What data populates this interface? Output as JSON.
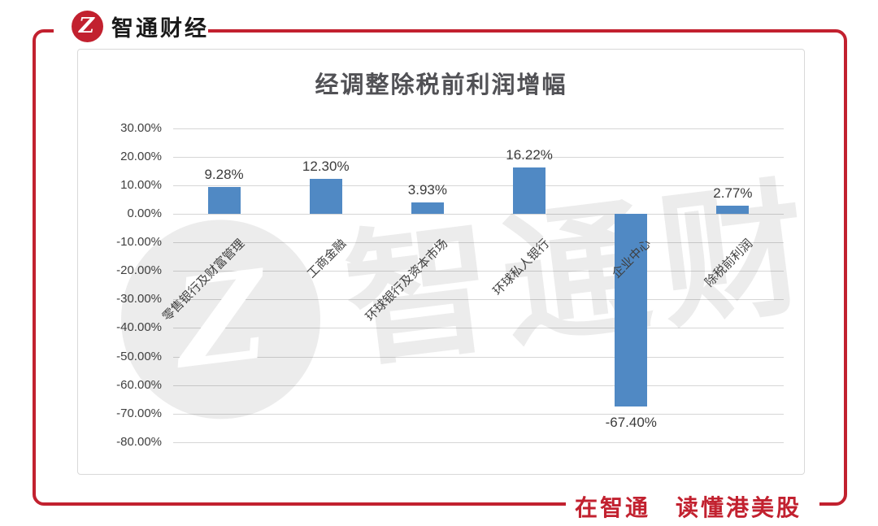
{
  "brand": {
    "logo_glyph": "Z",
    "name": "智通财经",
    "slogan": "在智通　读懂港美股",
    "accent_color": "#c2212f"
  },
  "chart_data": {
    "type": "bar",
    "title": "经调整除税前利润增幅",
    "categories": [
      "零售银行及财富管理",
      "工商金融",
      "环球银行及资本市场",
      "环球私人银行",
      "企业中心",
      "除税前利润"
    ],
    "values": [
      9.28,
      12.3,
      3.93,
      16.22,
      -67.4,
      2.77
    ],
    "data_labels": [
      "9.28%",
      "12.30%",
      "3.93%",
      "16.22%",
      "-67.40%",
      "2.77%"
    ],
    "y_ticks": [
      "30.00%",
      "20.00%",
      "10.00%",
      "0.00%",
      "-10.00%",
      "-20.00%",
      "-30.00%",
      "-40.00%",
      "-50.00%",
      "-60.00%",
      "-70.00%",
      "-80.00%"
    ],
    "y_tick_values": [
      30,
      20,
      10,
      0,
      -10,
      -20,
      -30,
      -40,
      -50,
      -60,
      -70,
      -80
    ],
    "ylim": [
      -80,
      30
    ],
    "bar_color": "#5089c4",
    "grid": true,
    "legend": false,
    "watermark_text": "智通财经"
  }
}
